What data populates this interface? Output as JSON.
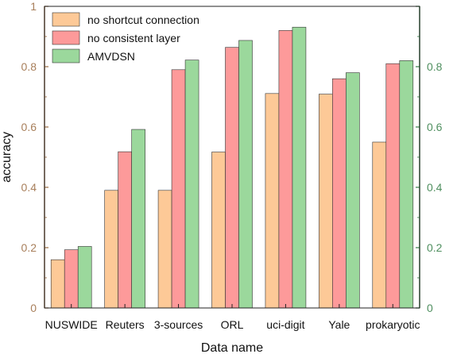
{
  "chart_data": {
    "type": "bar",
    "title": "",
    "xlabel": "Data name",
    "ylabel": "accuracy",
    "ylim": [
      0,
      1
    ],
    "yticks": [
      "0",
      "0.2",
      "0.4",
      "0.6",
      "0.8",
      "1"
    ],
    "right_axis_ticks": [
      "0",
      "0.2",
      "0.4",
      "0.6",
      "0.8"
    ],
    "categories": [
      "NUSWIDE",
      "Reuters",
      "3-sources",
      "ORL",
      "uci-digit",
      "Yale",
      "prokaryotic"
    ],
    "series": [
      {
        "name": "no shortcut connection",
        "values": [
          0.16,
          0.39,
          0.39,
          0.517,
          0.711,
          0.709,
          0.55
        ]
      },
      {
        "name": "no consistent layer",
        "values": [
          0.193,
          0.518,
          0.79,
          0.864,
          0.92,
          0.76,
          0.81
        ]
      },
      {
        "name": "AMVDSN",
        "values": [
          0.204,
          0.592,
          0.822,
          0.887,
          0.931,
          0.78,
          0.82
        ]
      }
    ],
    "legend_position": "top-left",
    "grid": false
  },
  "colors": {
    "series": [
      "#fdc997",
      "#fd9a9a",
      "#9bd89c"
    ],
    "bar_edge": "#333333",
    "left_axis": "#a87f5b",
    "right_axis": "#4f8f5f",
    "frame": "#222222"
  }
}
